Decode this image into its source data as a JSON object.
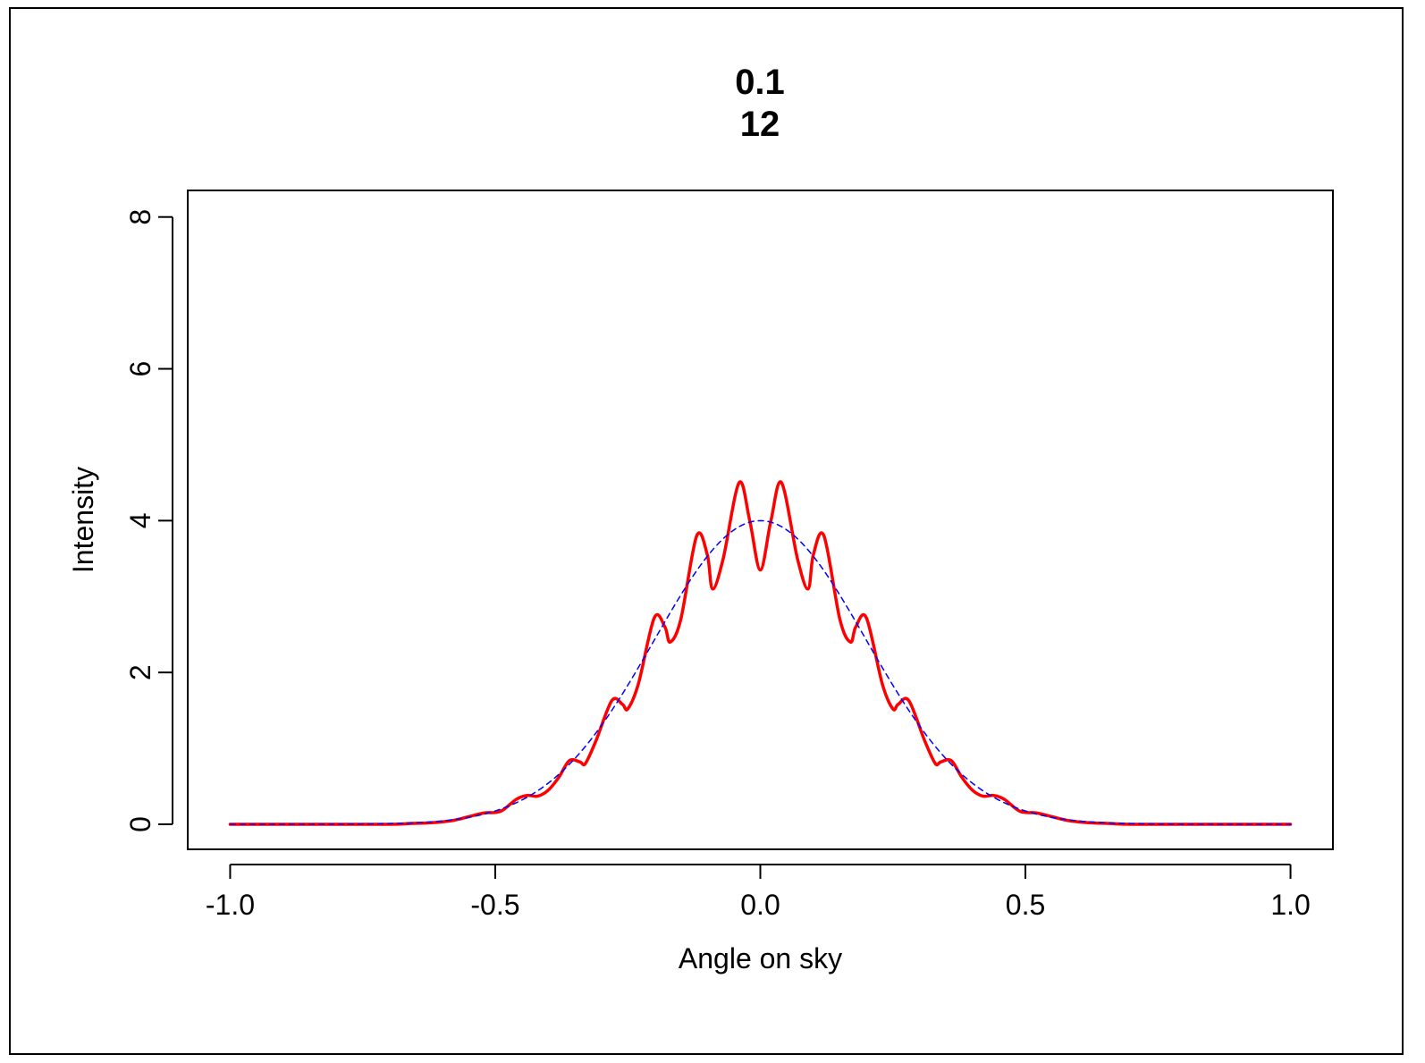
{
  "chart_data": {
    "type": "line",
    "title_line1": "0.1",
    "title_line2": "12",
    "xlabel": "Angle on sky",
    "ylabel": "Intensity",
    "xlim": [
      -1.08,
      1.08
    ],
    "ylim": [
      -0.33,
      8.35
    ],
    "x_ticks": [
      -1.0,
      -0.5,
      0.0,
      0.5,
      1.0
    ],
    "x_tick_labels": [
      "-1.0",
      "-0.5",
      "0.0",
      "0.5",
      "1.0"
    ],
    "y_ticks": [
      0,
      2,
      4,
      6,
      8
    ],
    "y_tick_labels": [
      "0",
      "2",
      "4",
      "6",
      "8"
    ],
    "grid": false,
    "series": [
      {
        "style": "solid",
        "color": "#ff0000",
        "points": [
          [
            -1.0,
            0.0
          ],
          [
            -0.9,
            0.0
          ],
          [
            -0.8,
            0.0
          ],
          [
            -0.7,
            0.0
          ],
          [
            -0.66,
            0.01
          ],
          [
            -0.62,
            0.02
          ],
          [
            -0.58,
            0.05
          ],
          [
            -0.55,
            0.1
          ],
          [
            -0.52,
            0.15
          ],
          [
            -0.49,
            0.17
          ],
          [
            -0.46,
            0.33
          ],
          [
            -0.44,
            0.38
          ],
          [
            -0.42,
            0.37
          ],
          [
            -0.4,
            0.45
          ],
          [
            -0.38,
            0.62
          ],
          [
            -0.36,
            0.84
          ],
          [
            -0.34,
            0.82
          ],
          [
            -0.33,
            0.8
          ],
          [
            -0.31,
            1.1
          ],
          [
            -0.28,
            1.63
          ],
          [
            -0.26,
            1.58
          ],
          [
            -0.25,
            1.52
          ],
          [
            -0.23,
            1.85
          ],
          [
            -0.2,
            2.72
          ],
          [
            -0.18,
            2.6
          ],
          [
            -0.17,
            2.4
          ],
          [
            -0.15,
            2.7
          ],
          [
            -0.12,
            3.8
          ],
          [
            -0.1,
            3.55
          ],
          [
            -0.09,
            3.1
          ],
          [
            -0.07,
            3.5
          ],
          [
            -0.04,
            4.5
          ],
          [
            -0.02,
            4.0
          ],
          [
            0.0,
            3.35
          ],
          [
            0.02,
            4.0
          ],
          [
            0.04,
            4.5
          ],
          [
            0.07,
            3.5
          ],
          [
            0.09,
            3.1
          ],
          [
            0.1,
            3.55
          ],
          [
            0.12,
            3.8
          ],
          [
            0.15,
            2.7
          ],
          [
            0.17,
            2.4
          ],
          [
            0.18,
            2.6
          ],
          [
            0.2,
            2.72
          ],
          [
            0.23,
            1.85
          ],
          [
            0.25,
            1.52
          ],
          [
            0.26,
            1.58
          ],
          [
            0.28,
            1.63
          ],
          [
            0.31,
            1.1
          ],
          [
            0.33,
            0.8
          ],
          [
            0.34,
            0.82
          ],
          [
            0.36,
            0.84
          ],
          [
            0.38,
            0.62
          ],
          [
            0.4,
            0.45
          ],
          [
            0.42,
            0.37
          ],
          [
            0.44,
            0.38
          ],
          [
            0.46,
            0.33
          ],
          [
            0.49,
            0.17
          ],
          [
            0.52,
            0.15
          ],
          [
            0.55,
            0.1
          ],
          [
            0.58,
            0.05
          ],
          [
            0.62,
            0.02
          ],
          [
            0.66,
            0.01
          ],
          [
            0.7,
            0.0
          ],
          [
            0.8,
            0.0
          ],
          [
            0.9,
            0.0
          ],
          [
            1.0,
            0.0
          ]
        ]
      },
      {
        "style": "dashed",
        "color": "#0000ff",
        "function": "gaussian",
        "peak": 4.0,
        "sigma": 0.2,
        "x_range": [
          -1.0,
          1.0
        ]
      }
    ]
  }
}
